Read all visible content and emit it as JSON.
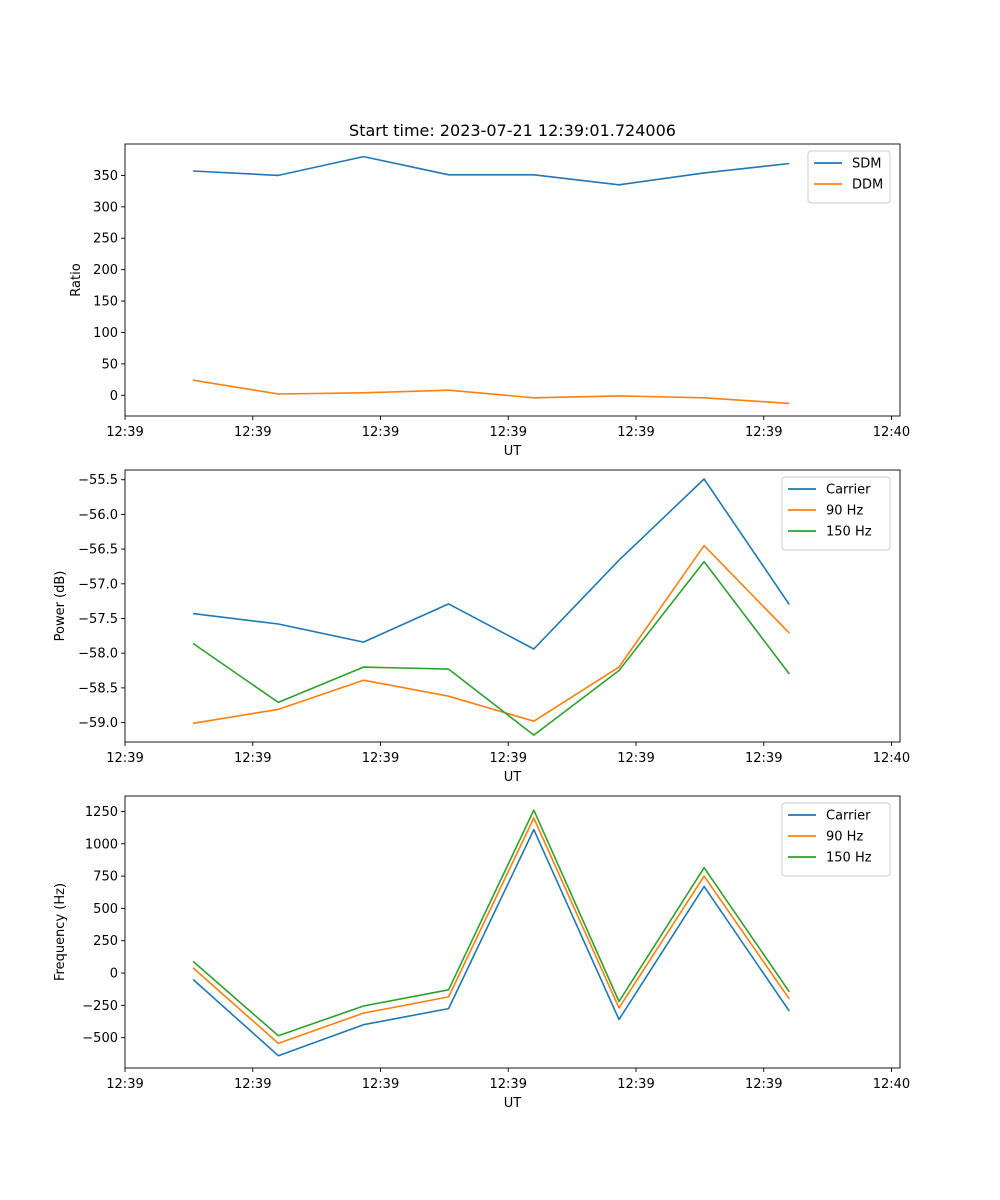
{
  "title": "Start time: 2023-07-21 12:39:01.724006",
  "colors": {
    "blue": "#1f77b4",
    "orange": "#ff7f0e",
    "green": "#2ca02c"
  },
  "chart_data": [
    {
      "type": "line",
      "title": "Start time: 2023-07-21 12:39:01.724006",
      "xlabel": "UT",
      "ylabel": "Ratio",
      "x": [
        1,
        2,
        3,
        4,
        5,
        6,
        7,
        8
      ],
      "xlim": [
        0.2,
        9.3
      ],
      "xticks": [
        0.2,
        1.7,
        3.2,
        4.7,
        6.2,
        7.7,
        9.2
      ],
      "xticklabels": [
        "12:39",
        "12:39",
        "12:39",
        "12:39",
        "12:39",
        "12:39",
        "12:40"
      ],
      "ylim": [
        -33,
        400
      ],
      "yticks": [
        0,
        50,
        100,
        150,
        200,
        250,
        300,
        350
      ],
      "yticklabels": [
        "0",
        "50",
        "100",
        "150",
        "200",
        "250",
        "300",
        "350"
      ],
      "legend": "top-right",
      "series": [
        {
          "name": "SDM",
          "color": "#1f77b4",
          "values": [
            357,
            350,
            380,
            351,
            351,
            335,
            354,
            369
          ]
        },
        {
          "name": "DDM",
          "color": "#ff7f0e",
          "values": [
            24,
            2,
            4,
            8,
            -4,
            -1,
            -4,
            -13
          ]
        }
      ]
    },
    {
      "type": "line",
      "xlabel": "UT",
      "ylabel": "Power (dB)",
      "x": [
        1,
        2,
        3,
        4,
        5,
        6,
        7,
        8
      ],
      "xlim": [
        0.2,
        9.3
      ],
      "xticks": [
        0.2,
        1.7,
        3.2,
        4.7,
        6.2,
        7.7,
        9.2
      ],
      "xticklabels": [
        "12:39",
        "12:39",
        "12:39",
        "12:39",
        "12:39",
        "12:39",
        "12:40"
      ],
      "ylim": [
        -59.28,
        -55.36
      ],
      "yticks": [
        -59.0,
        -58.5,
        -58.0,
        -57.5,
        -57.0,
        -56.5,
        -56.0,
        -55.5
      ],
      "yticklabels": [
        "−59.0",
        "−58.5",
        "−58.0",
        "−57.5",
        "−57.0",
        "−56.5",
        "−56.0",
        "−55.5"
      ],
      "legend": "top-right",
      "series": [
        {
          "name": "Carrier",
          "color": "#1f77b4",
          "values": [
            -57.43,
            -57.58,
            -57.84,
            -57.29,
            -57.94,
            -56.66,
            -55.49,
            -57.3
          ]
        },
        {
          "name": "90 Hz",
          "color": "#ff7f0e",
          "values": [
            -59.01,
            -58.81,
            -58.39,
            -58.62,
            -58.98,
            -58.2,
            -56.45,
            -57.71
          ]
        },
        {
          "name": "150 Hz",
          "color": "#2ca02c",
          "values": [
            -57.86,
            -58.71,
            -58.2,
            -58.23,
            -59.18,
            -58.25,
            -56.68,
            -58.3
          ]
        }
      ]
    },
    {
      "type": "line",
      "xlabel": "UT",
      "ylabel": "Frequency (Hz)",
      "x": [
        1,
        2,
        3,
        4,
        5,
        6,
        7,
        8
      ],
      "xlim": [
        0.2,
        9.3
      ],
      "xticks": [
        0.2,
        1.7,
        3.2,
        4.7,
        6.2,
        7.7,
        9.2
      ],
      "xticklabels": [
        "12:39",
        "12:39",
        "12:39",
        "12:39",
        "12:39",
        "12:39",
        "12:40"
      ],
      "ylim": [
        -735,
        1370
      ],
      "yticks": [
        -500,
        -250,
        0,
        250,
        500,
        750,
        1000,
        1250
      ],
      "yticklabels": [
        "−500",
        "−250",
        "0",
        "250",
        "500",
        "750",
        "1000",
        "1250"
      ],
      "legend": "top-right",
      "series": [
        {
          "name": "Carrier",
          "color": "#1f77b4",
          "values": [
            -50,
            -640,
            -400,
            -275,
            1110,
            -360,
            670,
            -295
          ]
        },
        {
          "name": "90 Hz",
          "color": "#ff7f0e",
          "values": [
            40,
            -545,
            -310,
            -185,
            1200,
            -270,
            750,
            -200
          ]
        },
        {
          "name": "150 Hz",
          "color": "#2ca02c",
          "values": [
            90,
            -485,
            -255,
            -130,
            1260,
            -220,
            815,
            -145
          ]
        }
      ]
    }
  ]
}
